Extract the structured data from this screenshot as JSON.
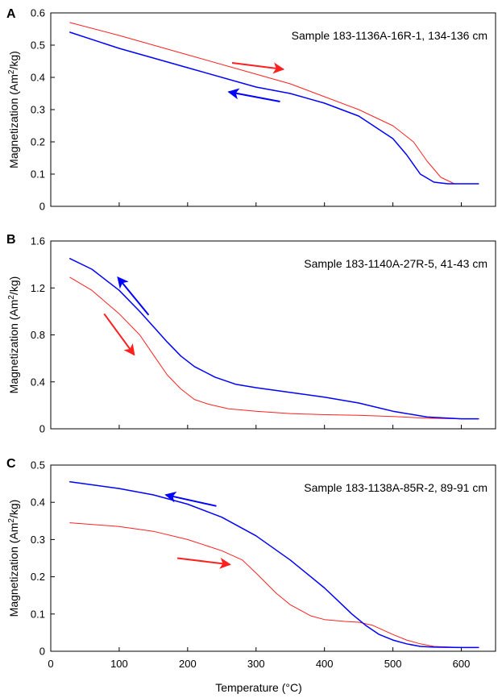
{
  "figure": {
    "xlabel": "Temperature (°C)",
    "ylabel_prefix": "Magnetization (Am",
    "ylabel_sup": "2",
    "ylabel_suffix": "/kg)"
  },
  "chart_data": [
    {
      "type": "line",
      "panel": "A",
      "annotation": "Sample 183-1136A-16R-1, 134-136 cm",
      "xlim": [
        0,
        650
      ],
      "ylim": [
        0,
        0.6
      ],
      "xticks": [
        100,
        200,
        300,
        400,
        500,
        600
      ],
      "xtick_labels_shown": false,
      "yticks": [
        0,
        0.1,
        0.2,
        0.3,
        0.4,
        0.5,
        0.6
      ],
      "ytick_labels": [
        "0",
        "0.1",
        "0.2",
        "0.3",
        "0.4",
        "0.5",
        "0.6"
      ],
      "series": [
        {
          "color": "#ff2020",
          "direction": "heating",
          "x": [
            28,
            100,
            200,
            300,
            350,
            400,
            450,
            500,
            530,
            550,
            570,
            590,
            610,
            625
          ],
          "y": [
            0.57,
            0.53,
            0.47,
            0.41,
            0.38,
            0.34,
            0.3,
            0.25,
            0.2,
            0.14,
            0.09,
            0.07,
            0.07,
            0.07
          ]
        },
        {
          "color": "#0000ff",
          "direction": "cooling",
          "x": [
            28,
            100,
            200,
            300,
            350,
            400,
            450,
            500,
            520,
            540,
            560,
            580,
            600,
            625
          ],
          "y": [
            0.54,
            0.49,
            0.43,
            0.37,
            0.35,
            0.32,
            0.28,
            0.21,
            0.16,
            0.1,
            0.075,
            0.07,
            0.07,
            0.07
          ]
        }
      ],
      "arrows": [
        {
          "color": "#ff2020",
          "from": [
            265,
            0.445
          ],
          "to": [
            340,
            0.425
          ]
        },
        {
          "color": "#0000ff",
          "from": [
            335,
            0.325
          ],
          "to": [
            260,
            0.355
          ]
        }
      ]
    },
    {
      "type": "line",
      "panel": "B",
      "annotation": "Sample 183-1140A-27R-5, 41-43 cm",
      "xlim": [
        0,
        650
      ],
      "ylim": [
        0,
        1.6
      ],
      "xticks": [
        100,
        200,
        300,
        400,
        500,
        600
      ],
      "xtick_labels_shown": false,
      "yticks": [
        0,
        0.4,
        0.8,
        1.2,
        1.6
      ],
      "ytick_labels": [
        "0",
        "0.4",
        "0.8",
        "1.2",
        "1.6"
      ],
      "series": [
        {
          "color": "#ff2020",
          "direction": "heating",
          "x": [
            28,
            60,
            100,
            130,
            150,
            170,
            190,
            210,
            230,
            260,
            300,
            350,
            400,
            450,
            500,
            550,
            600,
            625
          ],
          "y": [
            1.29,
            1.18,
            0.98,
            0.8,
            0.63,
            0.46,
            0.34,
            0.25,
            0.21,
            0.17,
            0.15,
            0.13,
            0.12,
            0.115,
            0.105,
            0.09,
            0.085,
            0.085
          ]
        },
        {
          "color": "#0000ff",
          "direction": "cooling",
          "x": [
            28,
            60,
            100,
            130,
            150,
            170,
            190,
            210,
            240,
            270,
            300,
            350,
            400,
            450,
            500,
            550,
            600,
            625
          ],
          "y": [
            1.45,
            1.36,
            1.18,
            1.0,
            0.87,
            0.74,
            0.62,
            0.53,
            0.44,
            0.38,
            0.35,
            0.31,
            0.27,
            0.22,
            0.15,
            0.1,
            0.085,
            0.085
          ]
        }
      ],
      "arrows": [
        {
          "color": "#ff2020",
          "from": [
            78,
            0.98
          ],
          "to": [
            122,
            0.63
          ]
        },
        {
          "color": "#0000ff",
          "from": [
            143,
            0.97
          ],
          "to": [
            98,
            1.29
          ]
        }
      ]
    },
    {
      "type": "line",
      "panel": "C",
      "annotation": "Sample 183-1138A-85R-2, 89-91 cm",
      "xlim": [
        0,
        650
      ],
      "ylim": [
        0,
        0.5
      ],
      "xticks": [
        0,
        100,
        200,
        300,
        400,
        500,
        600
      ],
      "xtick_labels_shown": true,
      "xtick_labels": [
        "0",
        "100",
        "200",
        "300",
        "400",
        "500",
        "600"
      ],
      "yticks": [
        0,
        0.1,
        0.2,
        0.3,
        0.4,
        0.5
      ],
      "ytick_labels": [
        "0",
        "0.1",
        "0.2",
        "0.3",
        "0.4",
        "0.5"
      ],
      "series": [
        {
          "color": "#ff2020",
          "direction": "heating",
          "x": [
            28,
            100,
            150,
            200,
            250,
            280,
            300,
            330,
            350,
            380,
            400,
            430,
            450,
            470,
            500,
            520,
            540,
            560,
            600,
            625
          ],
          "y": [
            0.345,
            0.335,
            0.322,
            0.3,
            0.27,
            0.245,
            0.21,
            0.155,
            0.125,
            0.095,
            0.085,
            0.08,
            0.078,
            0.07,
            0.045,
            0.03,
            0.02,
            0.013,
            0.01,
            0.01
          ]
        },
        {
          "color": "#0000ff",
          "direction": "cooling",
          "x": [
            28,
            100,
            150,
            200,
            250,
            300,
            350,
            380,
            400,
            420,
            440,
            460,
            480,
            500,
            520,
            540,
            560,
            600,
            625
          ],
          "y": [
            0.455,
            0.437,
            0.42,
            0.395,
            0.36,
            0.31,
            0.245,
            0.2,
            0.17,
            0.135,
            0.1,
            0.07,
            0.045,
            0.03,
            0.02,
            0.013,
            0.011,
            0.01,
            0.01
          ]
        }
      ],
      "arrows": [
        {
          "color": "#ff2020",
          "from": [
            185,
            0.25
          ],
          "to": [
            262,
            0.233
          ]
        },
        {
          "color": "#0000ff",
          "from": [
            242,
            0.39
          ],
          "to": [
            168,
            0.42
          ]
        }
      ]
    }
  ]
}
